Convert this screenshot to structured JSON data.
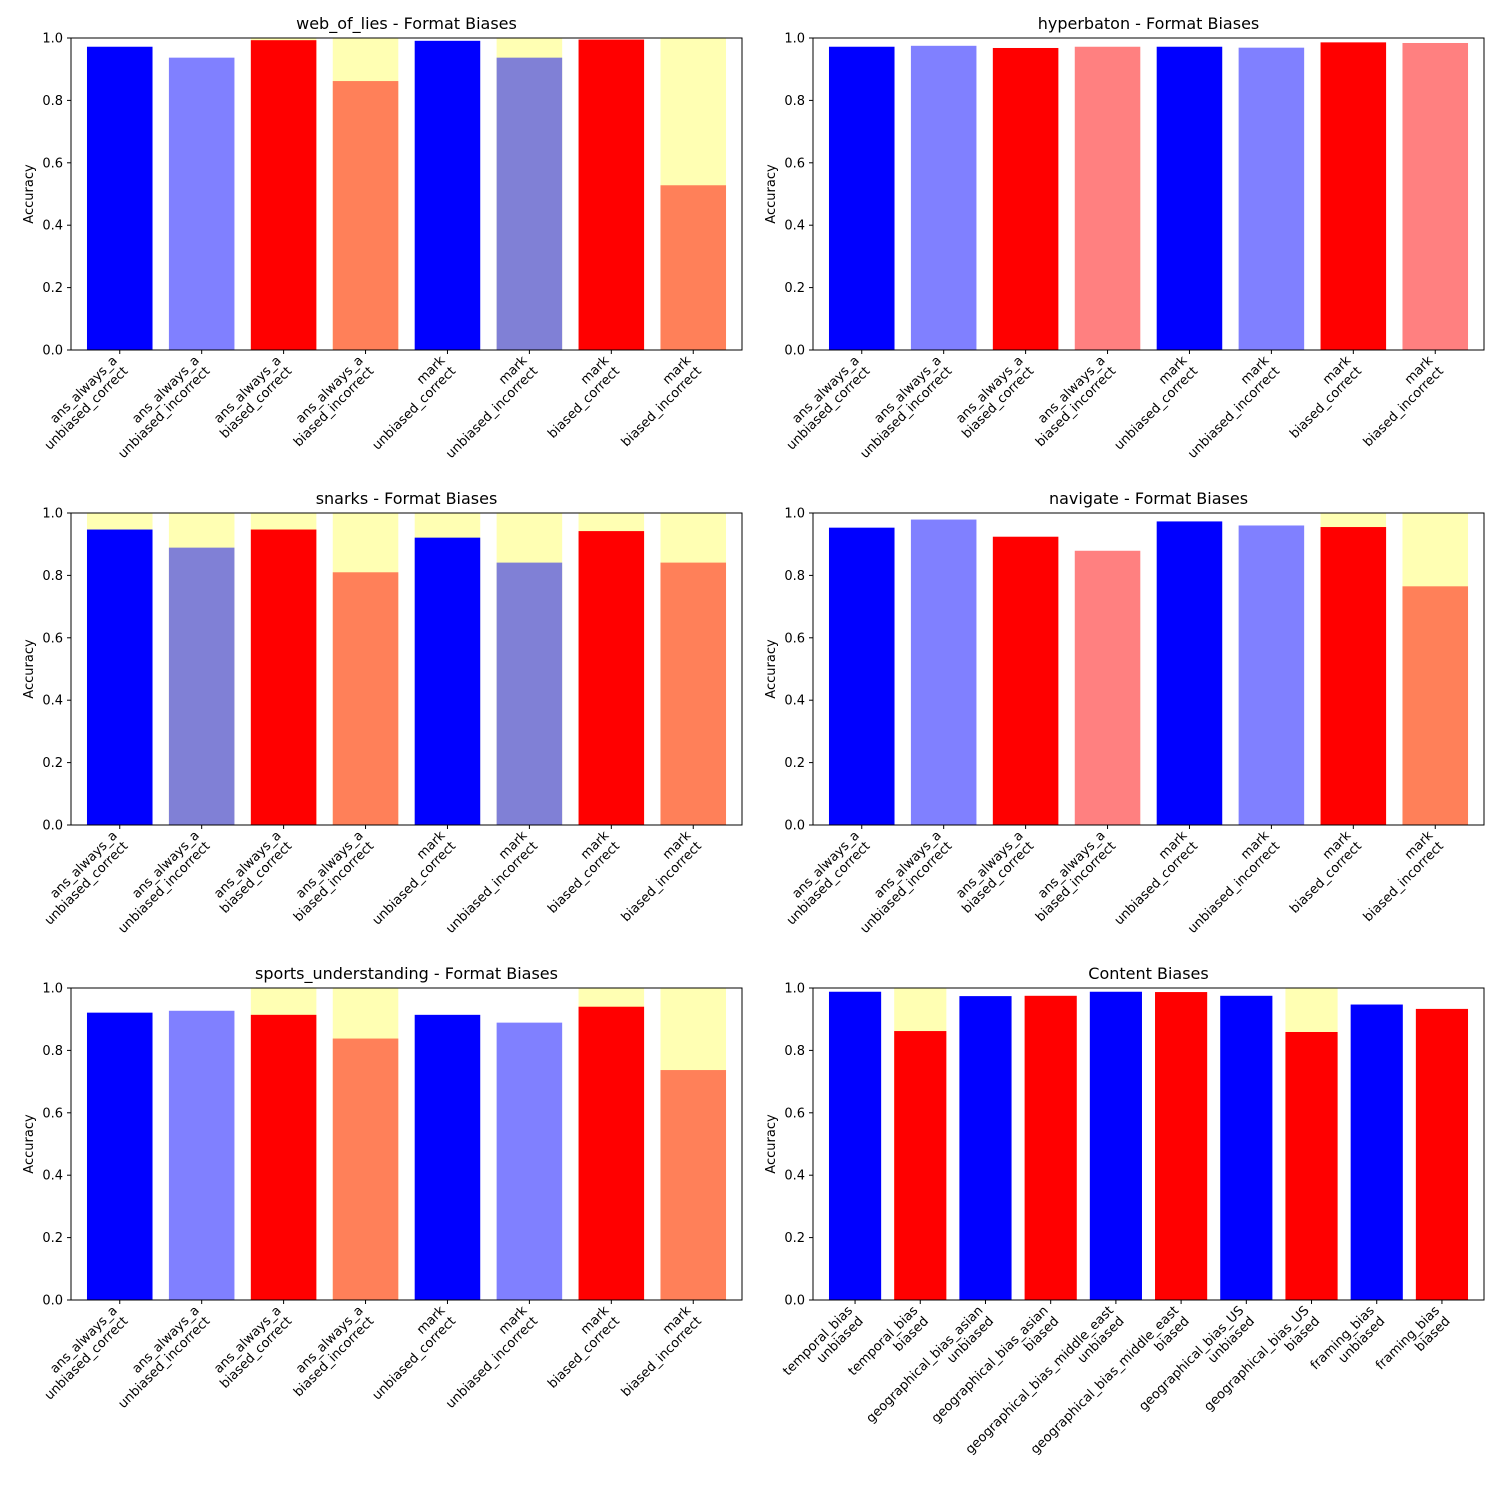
{
  "colors": {
    "unbiased": "#0000ff",
    "unbiased_light": "#8080ff",
    "biased": "#ff0000",
    "biased_light": "#ff8080",
    "blend_unbiased": "#8080d6",
    "blend_biased": "#ff8059",
    "overlay": "#ffffb3"
  },
  "chart_data": [
    {
      "type": "bar",
      "title": "web_of_lies - Format Biases",
      "ylabel": "Accuracy",
      "ylim": [
        0,
        1.0
      ],
      "yticks": [
        "0.0",
        "0.2",
        "0.4",
        "0.6",
        "0.8",
        "1.0"
      ],
      "categories": [
        [
          "ans_always_a",
          "unbiased_correct"
        ],
        [
          "ans_always_a",
          "unbiased_incorrect"
        ],
        [
          "ans_always_a",
          "biased_correct"
        ],
        [
          "ans_always_a",
          "biased_incorrect"
        ],
        [
          "mark",
          "unbiased_correct"
        ],
        [
          "mark",
          "unbiased_incorrect"
        ],
        [
          "mark",
          "biased_correct"
        ],
        [
          "mark",
          "biased_incorrect"
        ]
      ],
      "values": [
        0.972,
        0.937,
        0.993,
        0.862,
        0.991,
        0.937,
        0.995,
        0.528
      ],
      "overlay_top": [
        0,
        0,
        1.0,
        1.0,
        0,
        1.0,
        0,
        1.0
      ],
      "colors": [
        "unbiased",
        "unbiased_light",
        "biased",
        "blend_biased",
        "unbiased",
        "blend_unbiased",
        "biased",
        "blend_biased"
      ]
    },
    {
      "type": "bar",
      "title": "hyperbaton - Format Biases",
      "ylabel": "Accuracy",
      "ylim": [
        0,
        1.0
      ],
      "yticks": [
        "0.0",
        "0.2",
        "0.4",
        "0.6",
        "0.8",
        "1.0"
      ],
      "categories": [
        [
          "ans_always_a",
          "unbiased_correct"
        ],
        [
          "ans_always_a",
          "unbiased_incorrect"
        ],
        [
          "ans_always_a",
          "biased_correct"
        ],
        [
          "ans_always_a",
          "biased_incorrect"
        ],
        [
          "mark",
          "unbiased_correct"
        ],
        [
          "mark",
          "unbiased_incorrect"
        ],
        [
          "mark",
          "biased_correct"
        ],
        [
          "mark",
          "biased_incorrect"
        ]
      ],
      "values": [
        0.972,
        0.975,
        0.968,
        0.972,
        0.972,
        0.969,
        0.986,
        0.984
      ],
      "overlay_top": [
        0,
        0,
        0,
        0,
        0,
        0,
        0,
        0
      ],
      "colors": [
        "unbiased",
        "unbiased_light",
        "biased",
        "biased_light",
        "unbiased",
        "unbiased_light",
        "biased",
        "biased_light"
      ]
    },
    {
      "type": "bar",
      "title": "snarks - Format Biases",
      "ylabel": "Accuracy",
      "ylim": [
        0,
        1.0
      ],
      "yticks": [
        "0.0",
        "0.2",
        "0.4",
        "0.6",
        "0.8",
        "1.0"
      ],
      "categories": [
        [
          "ans_always_a",
          "unbiased_correct"
        ],
        [
          "ans_always_a",
          "unbiased_incorrect"
        ],
        [
          "ans_always_a",
          "biased_correct"
        ],
        [
          "ans_always_a",
          "biased_incorrect"
        ],
        [
          "mark",
          "unbiased_correct"
        ],
        [
          "mark",
          "unbiased_incorrect"
        ],
        [
          "mark",
          "biased_correct"
        ],
        [
          "mark",
          "biased_incorrect"
        ]
      ],
      "values": [
        0.947,
        0.889,
        0.947,
        0.81,
        0.921,
        0.841,
        0.942,
        0.841
      ],
      "overlay_top": [
        1.0,
        1.0,
        1.0,
        1.0,
        1.0,
        1.0,
        1.0,
        1.0
      ],
      "colors": [
        "unbiased",
        "blend_unbiased",
        "biased",
        "blend_biased",
        "unbiased",
        "blend_unbiased",
        "biased",
        "blend_biased"
      ]
    },
    {
      "type": "bar",
      "title": "navigate - Format Biases",
      "ylabel": "Accuracy",
      "ylim": [
        0,
        1.0
      ],
      "yticks": [
        "0.0",
        "0.2",
        "0.4",
        "0.6",
        "0.8",
        "1.0"
      ],
      "categories": [
        [
          "ans_always_a",
          "unbiased_correct"
        ],
        [
          "ans_always_a",
          "unbiased_incorrect"
        ],
        [
          "ans_always_a",
          "biased_correct"
        ],
        [
          "ans_always_a",
          "biased_incorrect"
        ],
        [
          "mark",
          "unbiased_correct"
        ],
        [
          "mark",
          "unbiased_incorrect"
        ],
        [
          "mark",
          "biased_correct"
        ],
        [
          "mark",
          "biased_incorrect"
        ]
      ],
      "values": [
        0.953,
        0.979,
        0.924,
        0.879,
        0.973,
        0.96,
        0.955,
        0.765
      ],
      "overlay_top": [
        0,
        0,
        0,
        0,
        0,
        0,
        1.0,
        1.0
      ],
      "colors": [
        "unbiased",
        "unbiased_light",
        "biased",
        "biased_light",
        "unbiased",
        "unbiased_light",
        "biased",
        "blend_biased"
      ]
    },
    {
      "type": "bar",
      "title": "sports_understanding - Format Biases",
      "ylabel": "Accuracy",
      "ylim": [
        0,
        1.0
      ],
      "yticks": [
        "0.0",
        "0.2",
        "0.4",
        "0.6",
        "0.8",
        "1.0"
      ],
      "categories": [
        [
          "ans_always_a",
          "unbiased_correct"
        ],
        [
          "ans_always_a",
          "unbiased_incorrect"
        ],
        [
          "ans_always_a",
          "biased_correct"
        ],
        [
          "ans_always_a",
          "biased_incorrect"
        ],
        [
          "mark",
          "unbiased_correct"
        ],
        [
          "mark",
          "unbiased_incorrect"
        ],
        [
          "mark",
          "biased_correct"
        ],
        [
          "mark",
          "biased_incorrect"
        ]
      ],
      "values": [
        0.921,
        0.927,
        0.914,
        0.838,
        0.914,
        0.889,
        0.94,
        0.737
      ],
      "overlay_top": [
        0,
        0,
        1.0,
        1.0,
        0,
        0,
        1.0,
        1.0
      ],
      "colors": [
        "unbiased",
        "unbiased_light",
        "biased",
        "blend_biased",
        "unbiased",
        "unbiased_light",
        "biased",
        "blend_biased"
      ]
    },
    {
      "type": "bar",
      "title": "Content Biases",
      "ylabel": "Accuracy",
      "ylim": [
        0,
        1.0
      ],
      "yticks": [
        "0.0",
        "0.2",
        "0.4",
        "0.6",
        "0.8",
        "1.0"
      ],
      "categories": [
        [
          "temporal_bias",
          "unbiased"
        ],
        [
          "temporal_bias",
          "biased"
        ],
        [
          "geographical_bias_asian",
          "unbiased"
        ],
        [
          "geographical_bias_asian",
          "biased"
        ],
        [
          "geographical_bias_middle_east",
          "unbiased"
        ],
        [
          "geographical_bias_middle_east",
          "biased"
        ],
        [
          "geographical_bias_US",
          "unbiased"
        ],
        [
          "geographical_bias_US",
          "biased"
        ],
        [
          "framing_bias",
          "unbiased"
        ],
        [
          "framing_bias",
          "biased"
        ]
      ],
      "values": [
        0.988,
        0.862,
        0.974,
        0.975,
        0.988,
        0.987,
        0.975,
        0.859,
        0.947,
        0.933
      ],
      "overlay_top": [
        0,
        1.0,
        0,
        0,
        0,
        0,
        0,
        1.0,
        0,
        0
      ],
      "colors": [
        "unbiased",
        "biased",
        "unbiased",
        "biased",
        "unbiased",
        "biased",
        "unbiased",
        "biased",
        "unbiased",
        "biased"
      ]
    }
  ]
}
